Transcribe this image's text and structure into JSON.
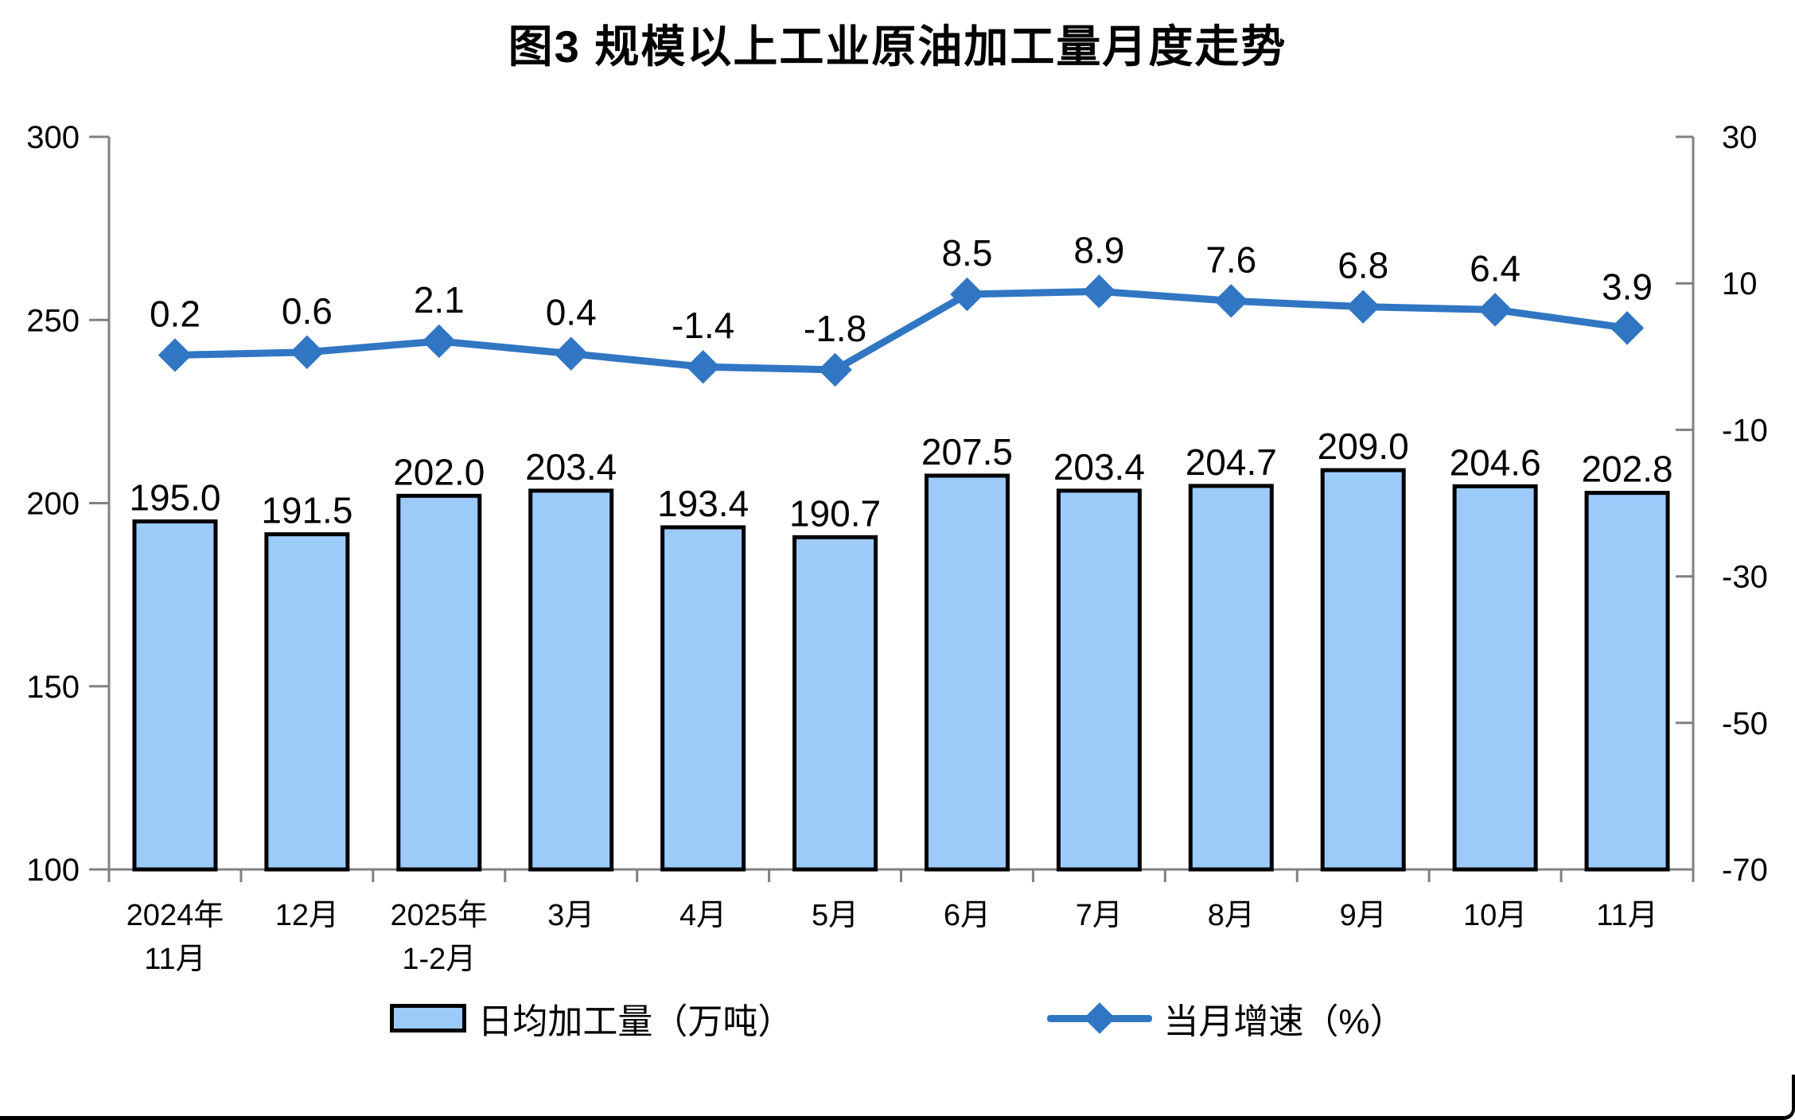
{
  "page": {
    "background": "#ffffff",
    "border_color": "#000000"
  },
  "chart_data": {
    "type": "combo",
    "title": "图3 规模以上工业原油加工量月度走势",
    "categories": [
      [
        "2024年",
        "11月"
      ],
      [
        "12月"
      ],
      [
        "2025年",
        "1-2月"
      ],
      [
        "3月"
      ],
      [
        "4月"
      ],
      [
        "5月"
      ],
      [
        "6月"
      ],
      [
        "7月"
      ],
      [
        "8月"
      ],
      [
        "9月"
      ],
      [
        "10月"
      ],
      [
        "11月"
      ]
    ],
    "series": [
      {
        "name": "日均加工量（万吨）",
        "type": "bar",
        "axis": "left",
        "color": "#9CCBFA",
        "border_color": "#000000",
        "values": [
          195.0,
          191.5,
          202.0,
          203.4,
          193.4,
          190.7,
          207.5,
          203.4,
          204.7,
          209.0,
          204.6,
          202.8
        ],
        "labels": [
          "195.0",
          "191.5",
          "202.0",
          "203.4",
          "193.4",
          "190.7",
          "207.5",
          "203.4",
          "204.7",
          "209.0",
          "204.6",
          "202.8"
        ]
      },
      {
        "name": "当月增速（%）",
        "type": "line",
        "axis": "right",
        "color": "#3176C3",
        "marker": "diamond",
        "values": [
          0.2,
          0.6,
          2.1,
          0.4,
          -1.4,
          -1.8,
          8.5,
          8.9,
          7.6,
          6.8,
          6.4,
          3.9
        ],
        "labels": [
          "0.2",
          "0.6",
          "2.1",
          "0.4",
          "-1.4",
          "-1.8",
          "8.5",
          "8.9",
          "7.6",
          "6.8",
          "6.4",
          "3.9"
        ]
      }
    ],
    "axes": {
      "left": {
        "min": 100,
        "max": 300,
        "ticks": [
          "300",
          "250",
          "200",
          "150",
          "100"
        ]
      },
      "right": {
        "min": -70,
        "max": 30,
        "ticks": [
          "30",
          "10",
          "-10",
          "-30",
          "-50",
          "-70"
        ]
      },
      "axis_color": "#808080"
    },
    "grid": false,
    "legend_position": "bottom"
  }
}
